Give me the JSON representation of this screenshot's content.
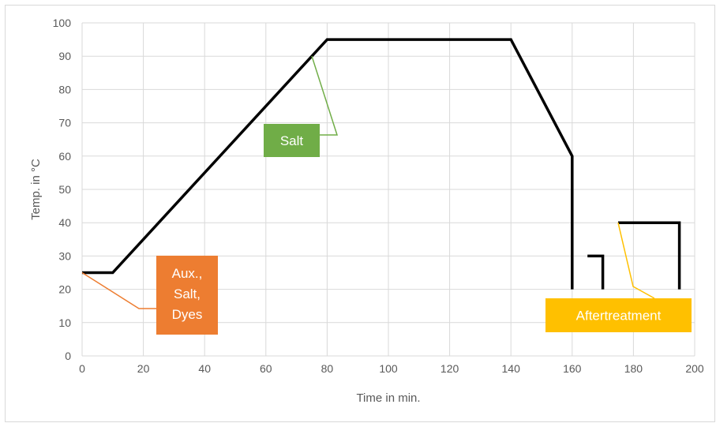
{
  "chart_data": {
    "type": "line",
    "title": "",
    "xlabel": "Time in min.",
    "ylabel": "Temp. in °C",
    "xlim": [
      0,
      200
    ],
    "ylim": [
      0,
      100
    ],
    "x_ticks": [
      0,
      20,
      40,
      60,
      80,
      100,
      120,
      140,
      160,
      180,
      200
    ],
    "y_ticks": [
      0,
      10,
      20,
      30,
      40,
      50,
      60,
      70,
      80,
      90,
      100
    ],
    "grid": true,
    "legend": "none",
    "line_color": "#000000",
    "series": [
      {
        "points": [
          [
            0,
            25
          ],
          [
            10,
            25
          ],
          [
            80,
            95
          ],
          [
            140,
            95
          ],
          [
            160,
            60
          ],
          [
            160,
            20
          ]
        ]
      },
      {
        "points": [
          [
            165,
            30
          ],
          [
            170,
            30
          ],
          [
            170,
            20
          ]
        ]
      },
      {
        "points": [
          [
            175,
            40
          ],
          [
            195,
            40
          ],
          [
            195,
            20
          ]
        ]
      }
    ],
    "annotations": [
      {
        "label": "Aux., Salt, Dyes",
        "color": "#ED7D31",
        "points_to": [
          0,
          25
        ]
      },
      {
        "label": "Salt",
        "color": "#70AD47",
        "points_to": [
          75,
          90
        ]
      },
      {
        "label": "Aftertreatment",
        "color": "#FFC000",
        "points_to": [
          175,
          40
        ]
      }
    ]
  }
}
